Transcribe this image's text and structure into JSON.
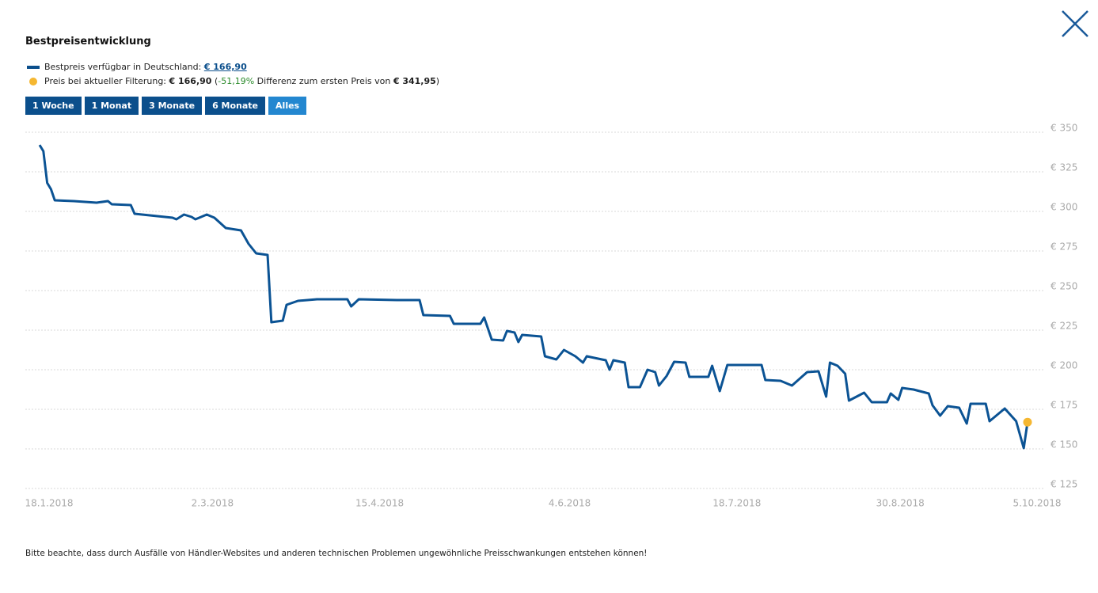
{
  "header": {
    "title": "Bestpreisentwicklung"
  },
  "legend": [
    {
      "color": "#0b4f8c",
      "marker": "line",
      "parts": [
        {
          "text": "Bestpreis verfügbar in Deutschland: "
        },
        {
          "text": "€ 166,90",
          "style": "link"
        }
      ]
    },
    {
      "color": "#f5b731",
      "marker": "dot",
      "parts": [
        {
          "text": "Preis bei aktueller Filterung: "
        },
        {
          "text": "€ 166,90",
          "style": "bold"
        },
        {
          "text": " ("
        },
        {
          "text": "-51,19%",
          "style": "green"
        },
        {
          "text": " Differenz zum ersten Preis von "
        },
        {
          "text": "€ 341,95",
          "style": "bold"
        },
        {
          "text": ")"
        }
      ]
    }
  ],
  "buttons": [
    {
      "label": "1 Woche",
      "active": false
    },
    {
      "label": "1 Monat",
      "active": false
    },
    {
      "label": "3 Monate",
      "active": false
    },
    {
      "label": "6 Monate",
      "active": false
    },
    {
      "label": "Alles",
      "active": true
    }
  ],
  "footnote": "Bitte beachte, dass durch Ausfälle von Händler-Websites und anderen technischen Problemen ungewöhnliche Preisschwankungen entstehen können!",
  "chart_data": {
    "type": "line",
    "grid": true,
    "xlim": [
      "2018-01-18",
      "2018-10-05"
    ],
    "xticks": [
      {
        "value": "2018-01-18",
        "label": "18.1.2018"
      },
      {
        "value": "2018-03-02",
        "label": "2.3.2018"
      },
      {
        "value": "2018-04-15",
        "label": "15.4.2018"
      },
      {
        "value": "2018-06-04",
        "label": "4.6.2018"
      },
      {
        "value": "2018-07-18",
        "label": "18.7.2018"
      },
      {
        "value": "2018-08-30",
        "label": "30.8.2018"
      },
      {
        "value": "2018-10-05",
        "label": "5.10.2018"
      }
    ],
    "ylim": [
      125,
      350
    ],
    "yticks": [
      {
        "value": 125,
        "label": "€ 125"
      },
      {
        "value": 150,
        "label": "€ 150"
      },
      {
        "value": 175,
        "label": "€ 175"
      },
      {
        "value": 200,
        "label": "€ 200"
      },
      {
        "value": 225,
        "label": "€ 225"
      },
      {
        "value": 250,
        "label": "€ 250"
      },
      {
        "value": 275,
        "label": "€ 275"
      },
      {
        "value": 300,
        "label": "€ 300"
      },
      {
        "value": 325,
        "label": "€ 325"
      },
      {
        "value": 350,
        "label": "€ 350"
      }
    ],
    "x": [
      "2018-01-18",
      "2018-01-19",
      "2018-01-20",
      "2018-01-21",
      "2018-01-22",
      "2018-01-27",
      "2018-02-02",
      "2018-02-05",
      "2018-02-06",
      "2018-02-11",
      "2018-02-12",
      "2018-02-18",
      "2018-02-22",
      "2018-02-23",
      "2018-02-25",
      "2018-02-27",
      "2018-02-28",
      "2018-03-03",
      "2018-03-05",
      "2018-03-08",
      "2018-03-12",
      "2018-03-14",
      "2018-03-16",
      "2018-03-19",
      "2018-03-20",
      "2018-03-23",
      "2018-03-24",
      "2018-03-27",
      "2018-04-01",
      "2018-04-09",
      "2018-04-10",
      "2018-04-12",
      "2018-04-22",
      "2018-04-28",
      "2018-04-29",
      "2018-05-06",
      "2018-05-07",
      "2018-05-14",
      "2018-05-15",
      "2018-05-17",
      "2018-05-20",
      "2018-05-21",
      "2018-05-23",
      "2018-05-24",
      "2018-05-25",
      "2018-05-30",
      "2018-05-31",
      "2018-06-03",
      "2018-06-05",
      "2018-06-08",
      "2018-06-10",
      "2018-06-11",
      "2018-06-16",
      "2018-06-17",
      "2018-06-18",
      "2018-06-21",
      "2018-06-22",
      "2018-06-25",
      "2018-06-27",
      "2018-06-29",
      "2018-06-30",
      "2018-07-02",
      "2018-07-04",
      "2018-07-07",
      "2018-07-08",
      "2018-07-13",
      "2018-07-14",
      "2018-07-16",
      "2018-07-18",
      "2018-07-27",
      "2018-07-28",
      "2018-08-01",
      "2018-08-04",
      "2018-08-08",
      "2018-08-11",
      "2018-08-13",
      "2018-08-14",
      "2018-08-16",
      "2018-08-18",
      "2018-08-19",
      "2018-08-23",
      "2018-08-25",
      "2018-08-29",
      "2018-08-30",
      "2018-09-01",
      "2018-09-02",
      "2018-09-05",
      "2018-09-09",
      "2018-09-10",
      "2018-09-12",
      "2018-09-14",
      "2018-09-17",
      "2018-09-19",
      "2018-09-20",
      "2018-09-24",
      "2018-09-25",
      "2018-09-29",
      "2018-10-02",
      "2018-10-04",
      "2018-10-05"
    ],
    "series": [
      {
        "color": "#0b5394",
        "values": [
          341.95,
          338,
          318,
          314,
          307,
          306.5,
          305.5,
          306.5,
          304.5,
          304,
          298.5,
          297,
          296,
          295,
          298,
          296.5,
          295,
          298,
          296,
          289.5,
          288,
          279.5,
          273.5,
          272.5,
          230,
          231,
          241,
          243.5,
          244.5,
          244.5,
          240,
          244.5,
          244,
          244,
          234.5,
          234,
          229,
          229,
          233,
          219,
          218.5,
          224.5,
          223.5,
          217.5,
          222,
          221,
          208.5,
          206.5,
          212.5,
          208.5,
          204.5,
          208.5,
          206,
          200,
          206,
          204.5,
          189,
          189,
          200,
          198.5,
          190,
          196,
          205,
          204.5,
          195.5,
          195.5,
          202.5,
          186.5,
          203,
          203,
          193.5,
          193,
          190,
          198.5,
          199,
          183,
          204.5,
          202.5,
          197.5,
          180.5,
          185.5,
          179.5,
          179.5,
          185,
          181,
          188.5,
          187.5,
          185,
          177.5,
          171,
          177,
          176,
          166,
          178.5,
          178.5,
          167.5,
          175.5,
          167.5,
          150.5,
          166.9
        ]
      }
    ],
    "marker": {
      "x": "2018-10-05",
      "value": 166.9,
      "color": "#f5b731"
    }
  }
}
